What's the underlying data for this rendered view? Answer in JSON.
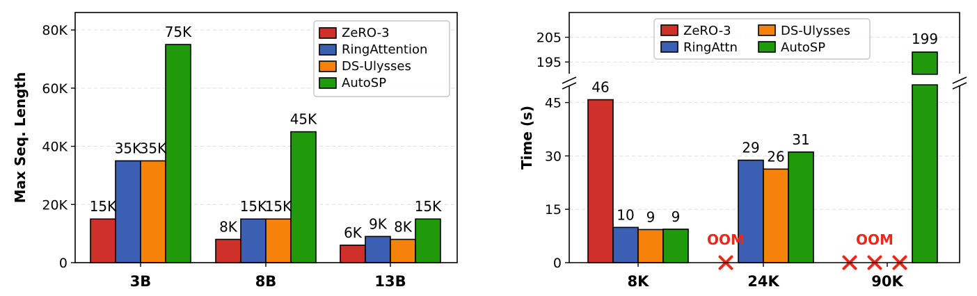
{
  "colors": {
    "ZeRO-3": "#d0302a",
    "RingAttention": "#3a5fb3",
    "DS-Ulysses": "#f5820a",
    "AutoSP": "#1f9a0a",
    "oom": "#e8291c"
  },
  "chart_data": [
    {
      "type": "bar",
      "title": "",
      "xlabel": "",
      "ylabel": "Max Seq. Length",
      "categories": [
        "3B",
        "8B",
        "13B"
      ],
      "ylim": [
        0,
        86000
      ],
      "yticks": [
        0,
        20000,
        40000,
        60000,
        80000
      ],
      "ytick_labels": [
        "0",
        "20K",
        "40K",
        "60K",
        "80K"
      ],
      "grid": true,
      "legend_position": "top-right",
      "series": [
        {
          "name": "ZeRO-3",
          "values": [
            15000,
            8000,
            6000
          ],
          "labels": [
            "15K",
            "8K",
            "6K"
          ]
        },
        {
          "name": "RingAttention",
          "values": [
            35000,
            15000,
            9000
          ],
          "labels": [
            "35K",
            "15K",
            "9K"
          ]
        },
        {
          "name": "DS-Ulysses",
          "values": [
            35000,
            15000,
            8000
          ],
          "labels": [
            "35K",
            "15K",
            "8K"
          ]
        },
        {
          "name": "AutoSP",
          "values": [
            75000,
            45000,
            15000
          ],
          "labels": [
            "75K",
            "45K",
            "15K"
          ]
        }
      ],
      "bar_labels": [
        [
          "15K",
          "8K",
          "6K"
        ],
        [
          "35K",
          "15K",
          "9K"
        ],
        [
          "35K",
          "15K",
          "8K"
        ],
        [
          "75K",
          "45K",
          "15K"
        ]
      ],
      "legend": [
        "ZeRO-3",
        "RingAttention",
        "DS-Ulysses",
        "AutoSP"
      ]
    },
    {
      "type": "bar",
      "title": "",
      "xlabel": "",
      "ylabel": "Time (s)",
      "categories": [
        "8K",
        "24K",
        "90K"
      ],
      "broken_axis": true,
      "ylim_lower": [
        0,
        50
      ],
      "ylim_upper": [
        190,
        215
      ],
      "yticks_lower": [
        0,
        15,
        30,
        45
      ],
      "ytick_labels_lower": [
        "0",
        "15",
        "30",
        "45"
      ],
      "yticks_upper": [
        195,
        205
      ],
      "ytick_labels_upper": [
        "195",
        "205"
      ],
      "grid": true,
      "legend_position": "top-center",
      "series": [
        {
          "name": "ZeRO-3",
          "values": [
            45.8,
            null,
            null
          ],
          "labels": [
            "46",
            "",
            ""
          ]
        },
        {
          "name": "RingAttn",
          "values": [
            9.9,
            28.8,
            null
          ],
          "labels": [
            "10",
            "29",
            ""
          ]
        },
        {
          "name": "DS-Ulysses",
          "values": [
            9.3,
            26.3,
            null
          ],
          "labels": [
            "9",
            "26",
            ""
          ]
        },
        {
          "name": "AutoSP",
          "values": [
            9.4,
            31.1,
            199
          ],
          "labels": [
            "9",
            "31",
            "199"
          ]
        }
      ],
      "oom_label": "OOM",
      "oom_markers": [
        {
          "category": "24K",
          "series": [
            "ZeRO-3"
          ]
        },
        {
          "category": "90K",
          "series": [
            "ZeRO-3",
            "RingAttn",
            "DS-Ulysses"
          ]
        }
      ],
      "oom_texts": [
        "OOM",
        "OOM"
      ],
      "bar_labels": [
        [
          "46",
          "",
          ""
        ],
        [
          "10",
          "29",
          ""
        ],
        [
          "9",
          "26",
          ""
        ],
        [
          "9",
          "31",
          "199"
        ]
      ],
      "legend": [
        "ZeRO-3",
        "DS-Ulysses",
        "RingAttn",
        "AutoSP"
      ]
    }
  ]
}
